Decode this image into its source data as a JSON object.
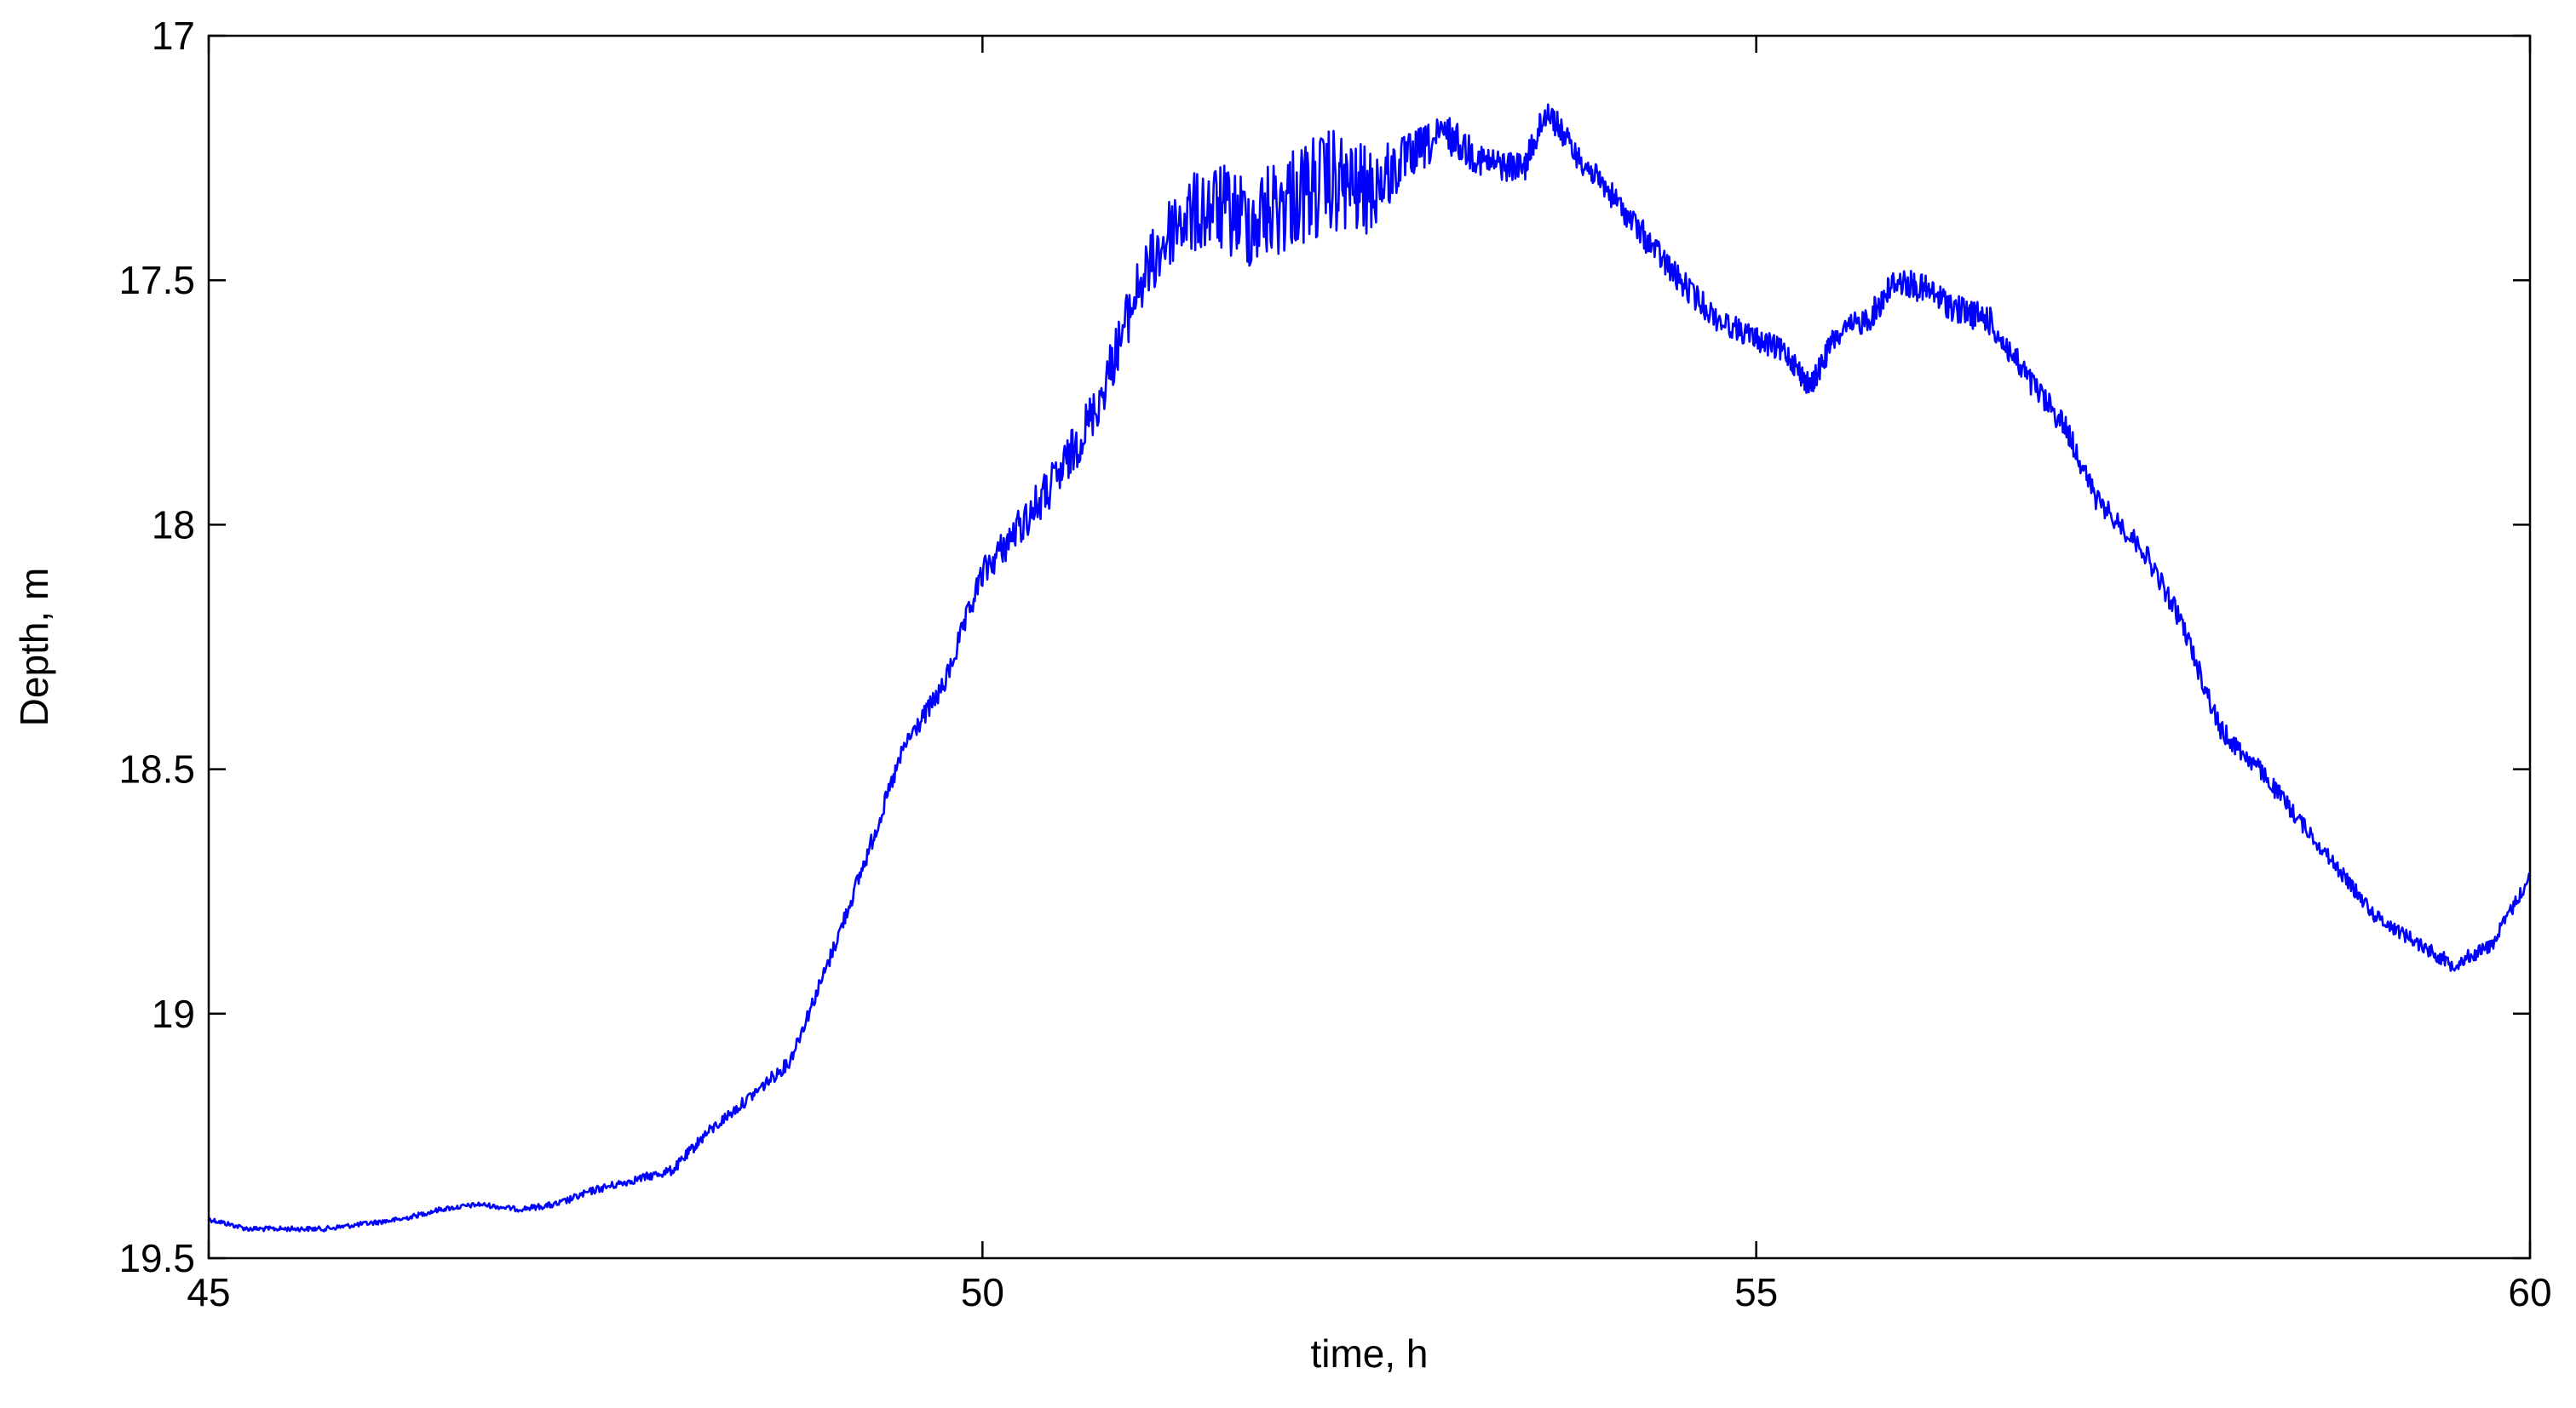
{
  "colors": {
    "background": "#ffffff",
    "axes": "#000000",
    "series": "#0000ff"
  },
  "chart_data": {
    "type": "line",
    "title": "",
    "xlabel": "time, h",
    "ylabel": "Depth, m",
    "xlim": [
      45,
      60
    ],
    "ylim": [
      17,
      19.5
    ],
    "y_reversed": true,
    "grid": false,
    "legend": "none",
    "x_ticks": [
      "45",
      "50",
      "55",
      "60"
    ],
    "x_tick_values": [
      45,
      50,
      55,
      60
    ],
    "y_ticks": [
      "17",
      "17.5",
      "18",
      "18.5",
      "19",
      "19.5"
    ],
    "y_tick_values": [
      17,
      17.5,
      18,
      18.5,
      19,
      19.5
    ],
    "series": [
      {
        "color": "#0000ff",
        "x": [
          45.0,
          45.25,
          45.5,
          45.75,
          46.0,
          46.25,
          46.5,
          46.75,
          47.0,
          47.25,
          47.5,
          47.75,
          48.0,
          48.2,
          48.5,
          48.75,
          49.0,
          49.25,
          49.5,
          49.75,
          50.0,
          50.25,
          50.5,
          50.75,
          51.0,
          51.25,
          51.5,
          51.75,
          52.0,
          52.25,
          52.5,
          52.75,
          53.0,
          53.25,
          53.5,
          53.65,
          53.85,
          54.0,
          54.25,
          54.5,
          54.75,
          55.0,
          55.2,
          55.35,
          55.5,
          55.75,
          55.9,
          56.1,
          56.3,
          56.5,
          56.75,
          57.0,
          57.2,
          57.5,
          57.75,
          58.0,
          58.25,
          58.5,
          58.75,
          59.0,
          59.25,
          59.5,
          59.75,
          60.0
        ],
        "y": [
          19.42,
          19.44,
          19.44,
          19.44,
          19.43,
          19.42,
          19.4,
          19.39,
          19.4,
          19.39,
          19.36,
          19.34,
          19.32,
          19.25,
          19.17,
          19.1,
          18.9,
          18.68,
          18.45,
          18.33,
          18.1,
          18.0,
          17.9,
          17.75,
          17.52,
          17.38,
          17.35,
          17.38,
          17.33,
          17.3,
          17.32,
          17.25,
          17.2,
          17.26,
          17.27,
          17.15,
          17.25,
          17.3,
          17.4,
          17.5,
          17.58,
          17.62,
          17.65,
          17.72,
          17.62,
          17.57,
          17.5,
          17.52,
          17.56,
          17.58,
          17.7,
          17.8,
          17.95,
          18.05,
          18.2,
          18.42,
          18.5,
          18.6,
          18.7,
          18.8,
          18.85,
          18.9,
          18.86,
          18.72
        ],
        "noise": [
          0.005,
          0.005,
          0.005,
          0.005,
          0.005,
          0.005,
          0.005,
          0.005,
          0.005,
          0.007,
          0.008,
          0.008,
          0.01,
          0.012,
          0.012,
          0.014,
          0.016,
          0.018,
          0.02,
          0.022,
          0.03,
          0.04,
          0.05,
          0.05,
          0.06,
          0.08,
          0.09,
          0.1,
          0.11,
          0.11,
          0.09,
          0.05,
          0.04,
          0.035,
          0.03,
          0.03,
          0.025,
          0.025,
          0.03,
          0.03,
          0.025,
          0.025,
          0.025,
          0.025,
          0.025,
          0.03,
          0.03,
          0.03,
          0.03,
          0.03,
          0.03,
          0.025,
          0.022,
          0.022,
          0.022,
          0.022,
          0.02,
          0.018,
          0.015,
          0.015,
          0.015,
          0.015,
          0.015,
          0.015
        ]
      }
    ]
  }
}
